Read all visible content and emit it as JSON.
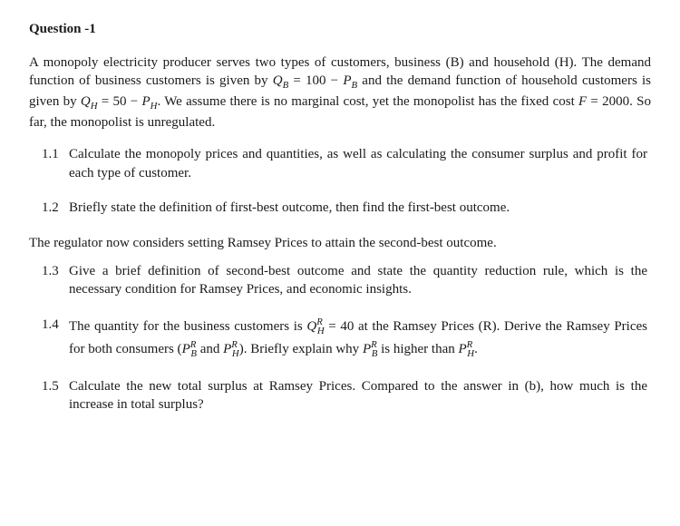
{
  "background_color": "#ffffff",
  "text_color": "#1a1a1a",
  "font_family": "Times New Roman",
  "base_fontsize": 15,
  "title": "Question   -1",
  "intro_html": "A monopoly electricity producer serves two types of customers, business (B) and household (H). The demand function of business customers is given by <i>Q<span class='sub'>B</span></i> = 100 − <i>P<span class='sub'>B</span></i> and the demand function of household customers is given by <i>Q<span class='sub'>H</span></i> = 50 − <i>P<span class='sub'>H</span></i>. We assume there is no marginal cost, yet the monopolist has the fixed cost <i>F</i> = 2000. So far, the monopolist is unregulated.",
  "items": {
    "q11": {
      "num": "1.1",
      "text": "Calculate the monopoly prices and quantities, as well as calculating the consumer surplus and profit for each type of customer."
    },
    "q12": {
      "num": "1.2",
      "text": "Briefly state the definition of first-best outcome, then find the first-best outcome."
    },
    "section2": "The regulator now considers setting Ramsey Prices to attain the second-best outcome.",
    "q13": {
      "num": "1.3",
      "text": "Give a brief definition of second-best outcome and state the quantity reduction rule, which is the necessary condition for Ramsey Prices, and economic insights."
    },
    "q14": {
      "num": "1.4",
      "text_html": "The quantity for the business customers is <i>Q</i><span class='sup'>R</span><span class='sub' style='margin-left:-6px'>H</span> = 40 at the Ramsey Prices (R). Derive the Ramsey Prices for both consumers (<i>P</i><span class='sup'>R</span><span class='sub' style='margin-left:-6px'>B</span> and <i>P</i><span class='sup'>R</span><span class='sub' style='margin-left:-6px'>H</span>). Briefly explain why <i>P</i><span class='sup'>R</span><span class='sub' style='margin-left:-6px'>B</span> is higher than <i>P</i><span class='sup'>R</span><span class='sub' style='margin-left:-6px'>H</span>."
    },
    "q15": {
      "num": "1.5",
      "text": "Calculate the new total surplus at Ramsey Prices. Compared to the answer in (b), how much is the increase in total surplus?"
    }
  }
}
